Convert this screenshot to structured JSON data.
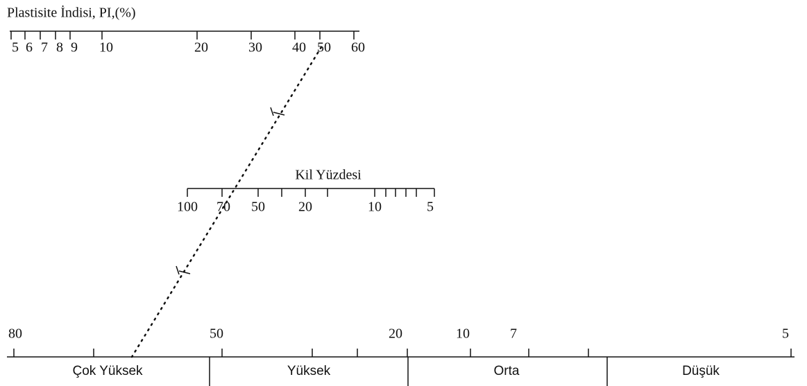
{
  "pi_scale": {
    "title": "Plastisite İndisi, PI,(%)",
    "labels": [
      5,
      6,
      7,
      8,
      9,
      10,
      20,
      30,
      40,
      50,
      60
    ]
  },
  "clay_scale": {
    "title": "Kil Yüzdesi",
    "labels": [
      100,
      70,
      50,
      20,
      10,
      5
    ]
  },
  "activity_scale": {
    "labels": [
      80,
      50,
      20,
      10,
      7,
      5
    ],
    "classes": [
      "Çok Yüksek",
      "Yüksek",
      "Orta",
      "Düşük"
    ]
  }
}
